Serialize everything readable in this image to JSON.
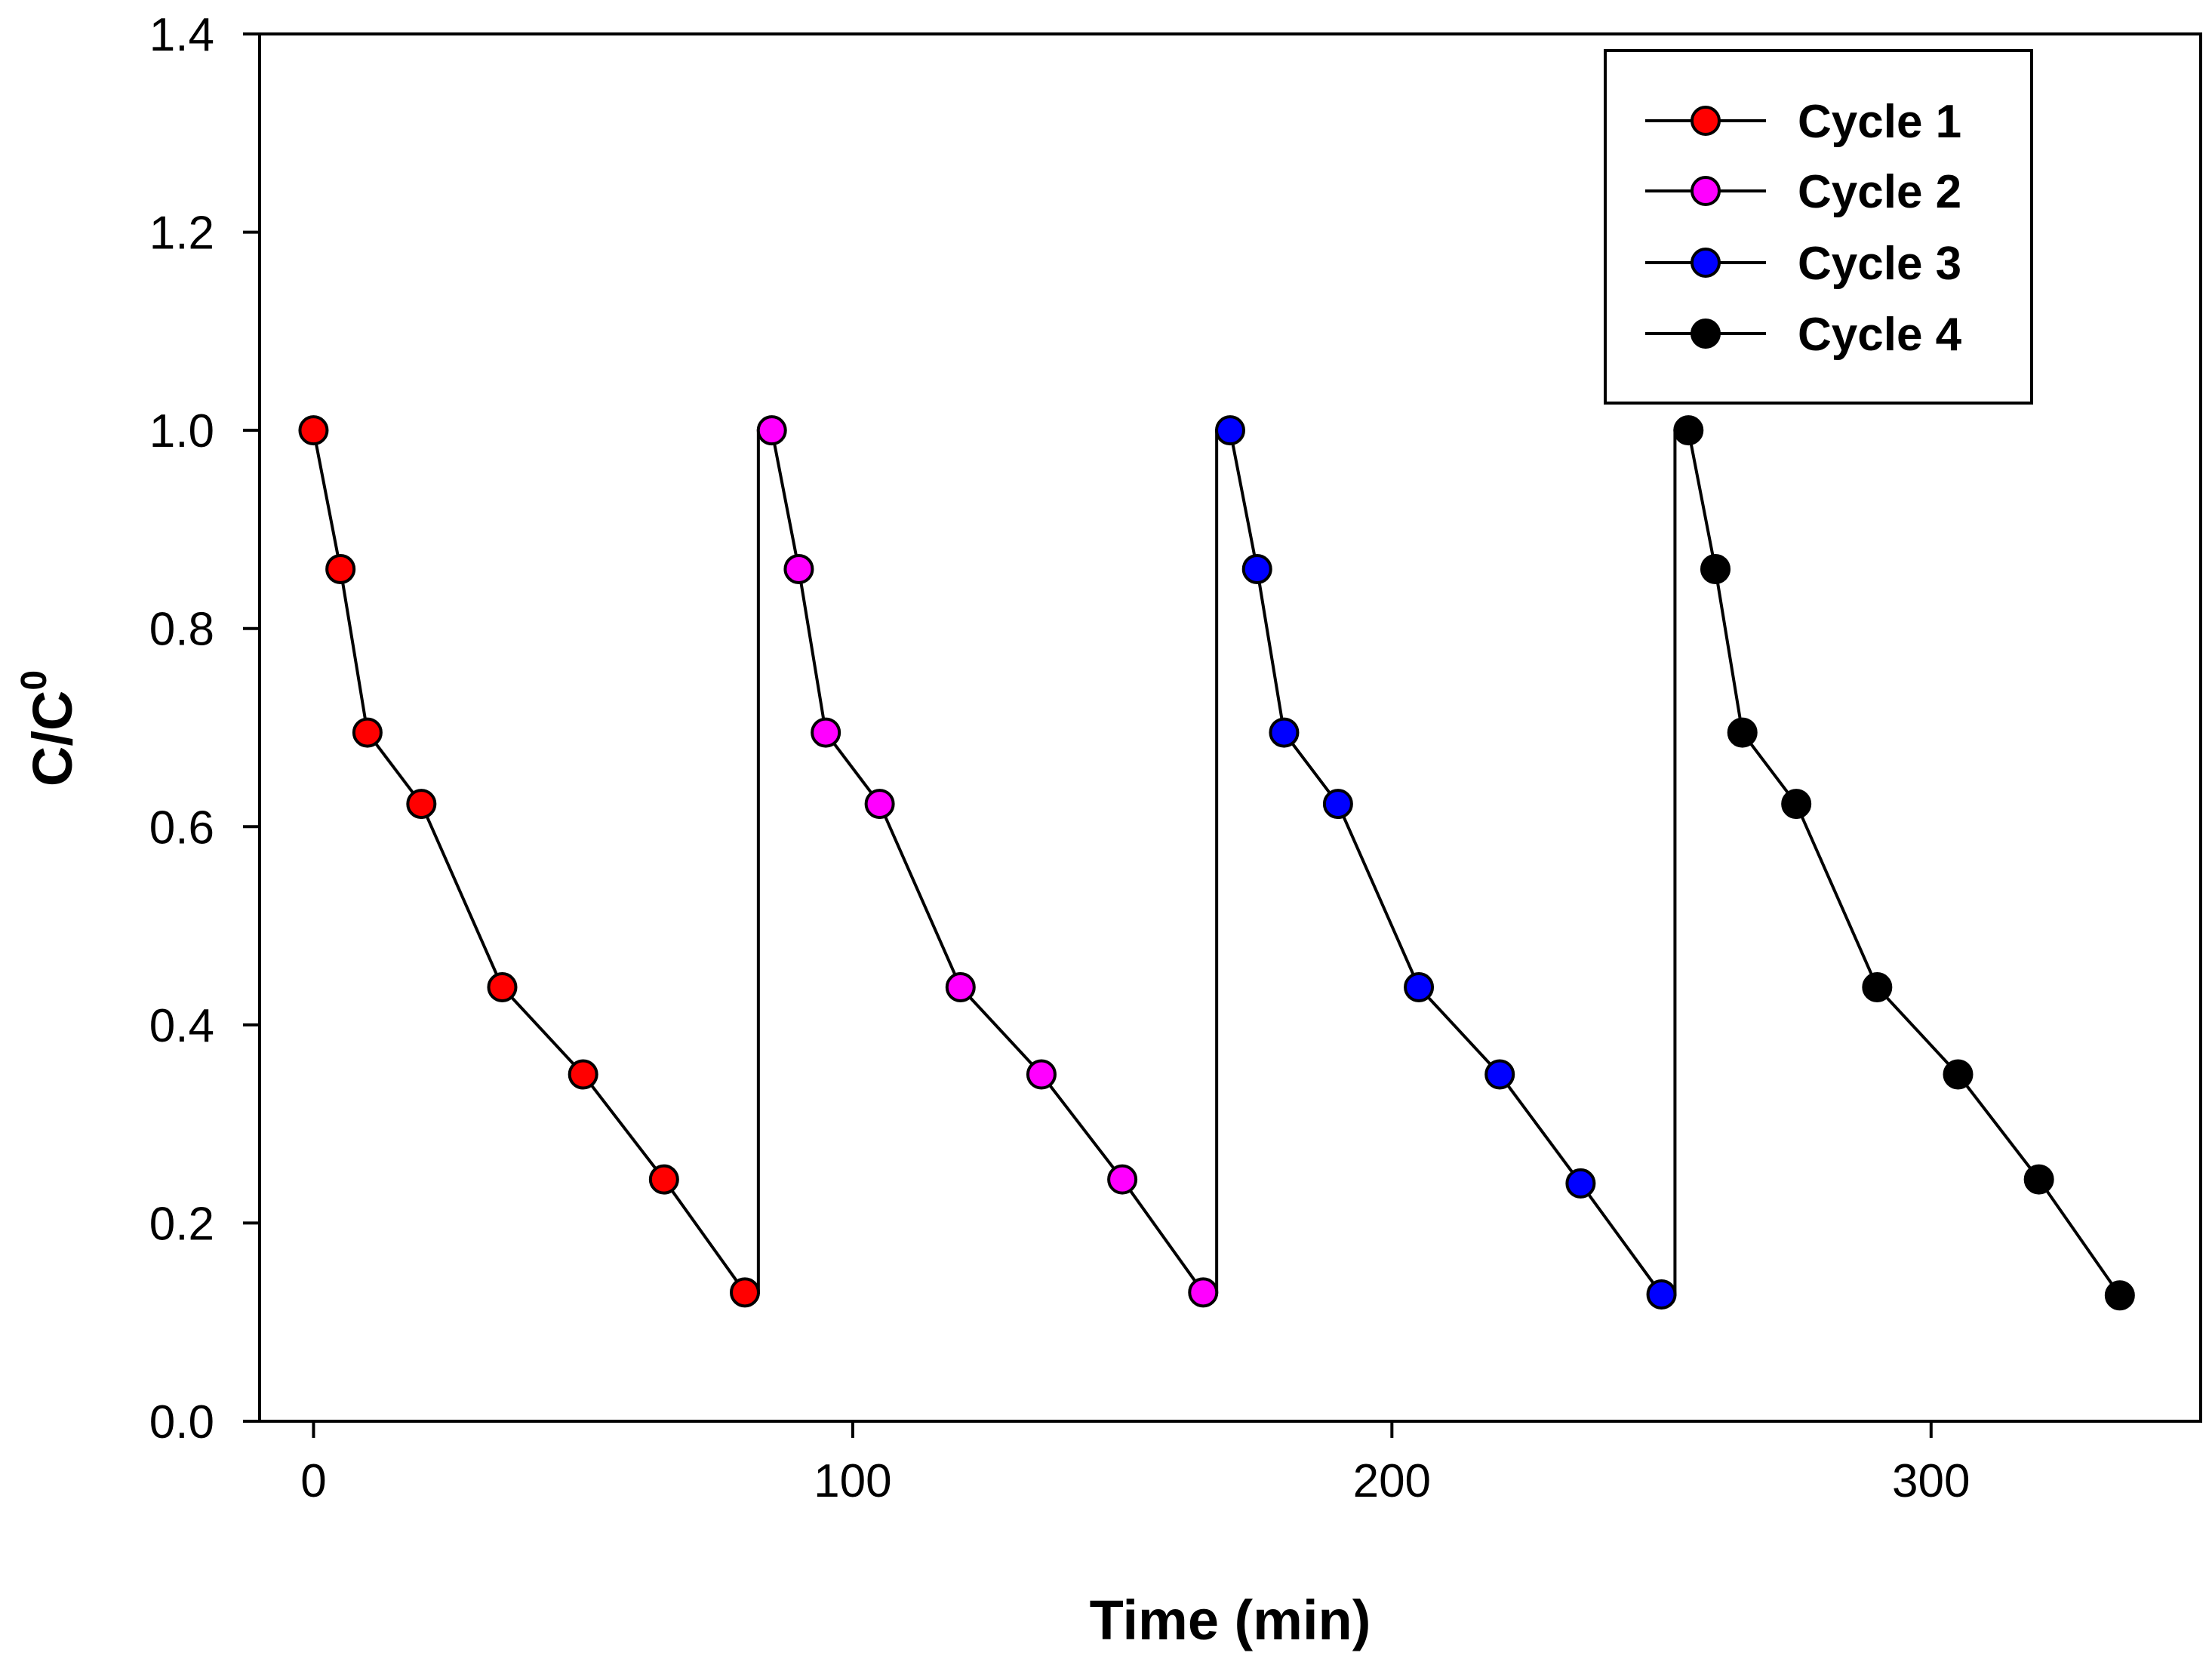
{
  "chart_data": {
    "type": "line",
    "title": "",
    "xlabel": "Time (min)",
    "ylabel": "C/C",
    "ylabel_superscript": "0",
    "xlim": [
      -10,
      350
    ],
    "ylim": [
      0,
      1.4
    ],
    "xticks": [
      0,
      100,
      200,
      300
    ],
    "yticks": [
      0.0,
      0.2,
      0.4,
      0.6,
      0.8,
      1.0,
      1.2,
      1.4
    ],
    "ytick_labels": [
      "0.0",
      "0.2",
      "0.4",
      "0.6",
      "0.8",
      "1.0",
      "1.2",
      "1.4"
    ],
    "xtick_labels": [
      "0",
      "100",
      "200",
      "300"
    ],
    "grid": false,
    "legend_position": "top-right",
    "connect_cycles": true,
    "series": [
      {
        "name": "Cycle 1",
        "color": "#ff0000",
        "x": [
          0,
          5,
          10,
          20,
          35,
          50,
          65,
          80
        ],
        "y": [
          1.0,
          0.86,
          0.695,
          0.623,
          0.438,
          0.35,
          0.244,
          0.13
        ]
      },
      {
        "name": "Cycle 2",
        "color": "#ff00ff",
        "x": [
          85,
          90,
          95,
          105,
          120,
          135,
          150,
          165
        ],
        "y": [
          1.0,
          0.86,
          0.695,
          0.623,
          0.438,
          0.35,
          0.244,
          0.13
        ]
      },
      {
        "name": "Cycle 3",
        "color": "#0000ff",
        "x": [
          170,
          175,
          180,
          190,
          205,
          220,
          235,
          250
        ],
        "y": [
          1.0,
          0.86,
          0.695,
          0.623,
          0.438,
          0.35,
          0.24,
          0.128
        ]
      },
      {
        "name": "Cycle 4",
        "color": "#000000",
        "x": [
          255,
          260,
          265,
          275,
          290,
          305,
          320,
          335
        ],
        "y": [
          1.0,
          0.86,
          0.695,
          0.623,
          0.438,
          0.35,
          0.244,
          0.127
        ]
      }
    ]
  }
}
